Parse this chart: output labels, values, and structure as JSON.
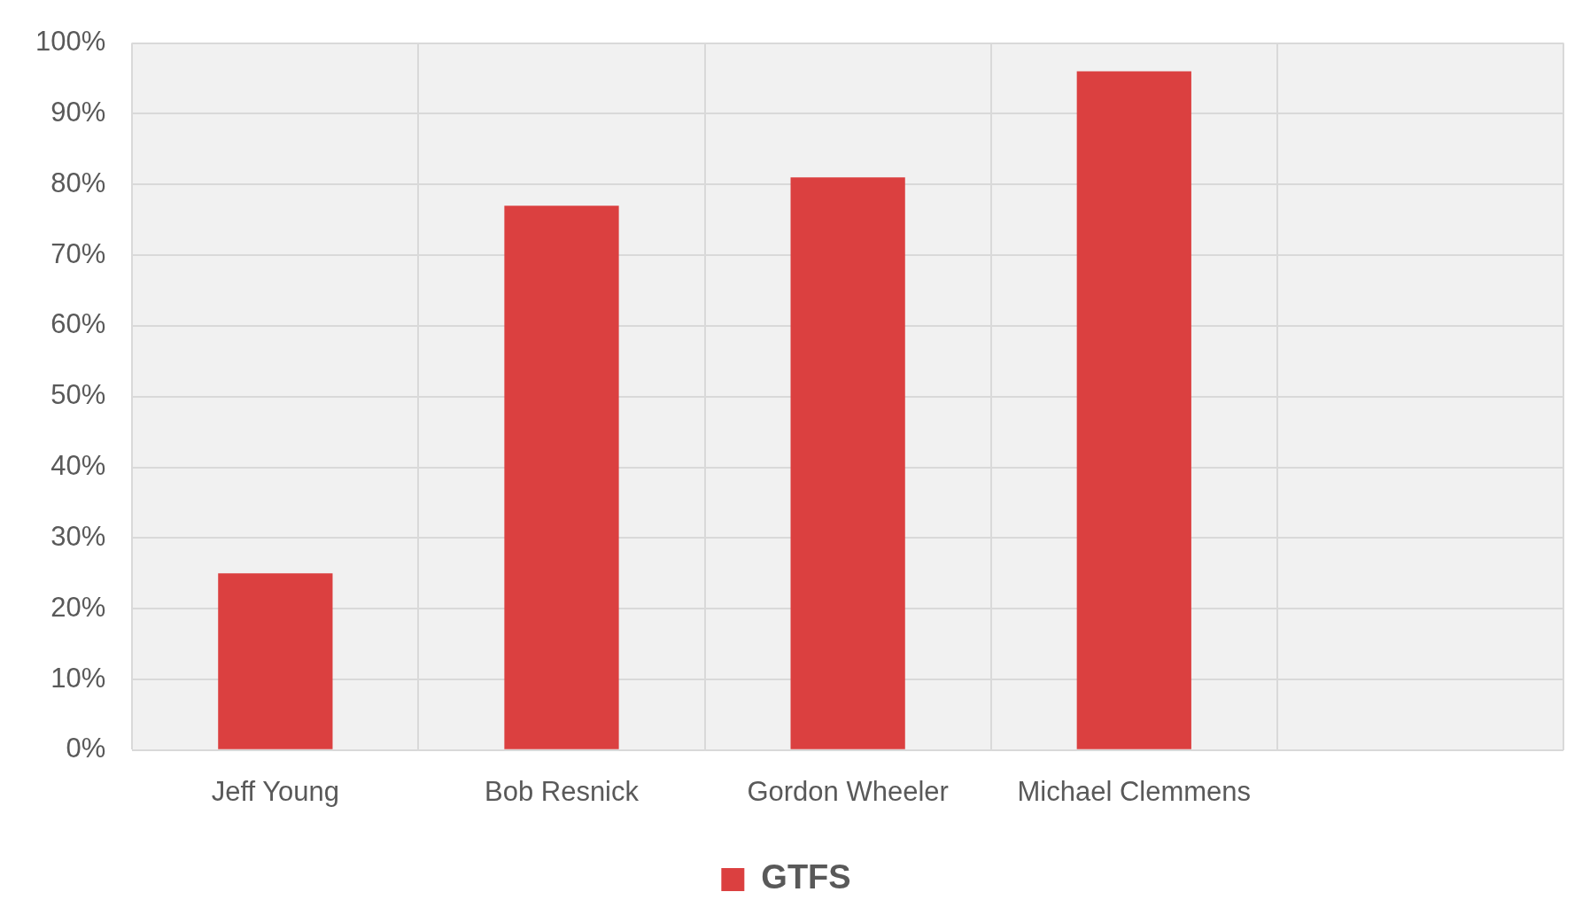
{
  "chart_data": {
    "type": "bar",
    "categories": [
      "Jeff Young",
      "Bob Resnick",
      "Gordon Wheeler",
      "Michael Clemmens",
      null
    ],
    "series": [
      {
        "name": "GTFS",
        "color": "#db4040",
        "values": [
          25,
          77,
          81,
          96,
          null
        ]
      }
    ],
    "ylim": [
      0,
      100
    ],
    "yticks": [
      {
        "value": 0,
        "label": "0%"
      },
      {
        "value": 10,
        "label": "10%"
      },
      {
        "value": 20,
        "label": "20%"
      },
      {
        "value": 30,
        "label": "30%"
      },
      {
        "value": 40,
        "label": "40%"
      },
      {
        "value": 50,
        "label": "50%"
      },
      {
        "value": 60,
        "label": "60%"
      },
      {
        "value": 70,
        "label": "70%"
      },
      {
        "value": 80,
        "label": "80%"
      },
      {
        "value": 90,
        "label": "90%"
      },
      {
        "value": 100,
        "label": "100%"
      }
    ],
    "grid": true,
    "legend": "bottom"
  }
}
